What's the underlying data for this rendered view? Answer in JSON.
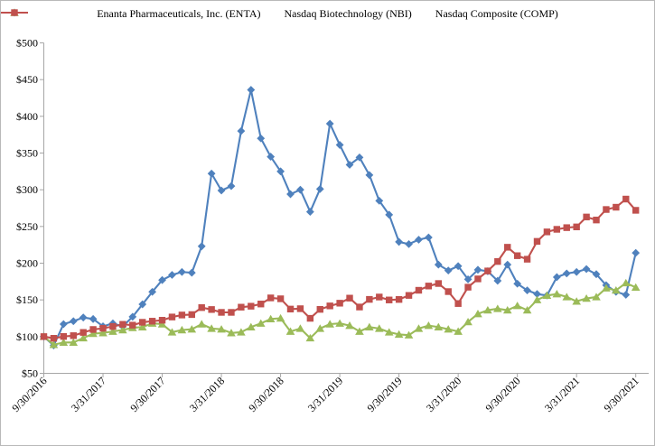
{
  "chart_data": {
    "type": "line",
    "title": "",
    "legend_position": "top",
    "grid": false,
    "y_axis": {
      "min": 50,
      "max": 500,
      "step": 50,
      "tick_labels": [
        "$50",
        "$100",
        "$150",
        "$200",
        "$250",
        "$300",
        "$350",
        "$400",
        "$450",
        "$500"
      ]
    },
    "x_axis": {
      "tick_every": 6,
      "tick_labels": [
        "9/30/2016",
        "3/31/2017",
        "9/30/2017",
        "3/31/2018",
        "9/30/2018",
        "3/31/2019",
        "9/30/2019",
        "3/31/2020",
        "9/30/2020",
        "3/31/2021",
        "9/30/2021"
      ]
    },
    "categories": [
      "9/30/2016",
      "10/31/2016",
      "11/30/2016",
      "12/31/2016",
      "1/31/2017",
      "2/28/2017",
      "3/31/2017",
      "4/30/2017",
      "5/31/2017",
      "6/30/2017",
      "7/31/2017",
      "8/31/2017",
      "9/30/2017",
      "10/31/2017",
      "11/30/2017",
      "12/31/2017",
      "1/31/2018",
      "2/28/2018",
      "3/31/2018",
      "4/30/2018",
      "5/31/2018",
      "6/30/2018",
      "7/31/2018",
      "8/31/2018",
      "9/30/2018",
      "10/31/2018",
      "11/30/2018",
      "12/31/2018",
      "1/31/2019",
      "2/28/2019",
      "3/31/2019",
      "4/30/2019",
      "5/31/2019",
      "6/30/2019",
      "7/31/2019",
      "8/31/2019",
      "9/30/2019",
      "10/31/2019",
      "11/30/2019",
      "12/31/2019",
      "1/31/2020",
      "2/28/2020",
      "3/31/2020",
      "4/30/2020",
      "5/31/2020",
      "6/30/2020",
      "7/31/2020",
      "8/31/2020",
      "9/30/2020",
      "10/31/2020",
      "11/30/2020",
      "12/31/2020",
      "1/31/2021",
      "2/28/2021",
      "3/31/2021",
      "4/30/2021",
      "5/31/2021",
      "6/30/2021",
      "7/31/2021",
      "8/31/2021",
      "9/30/2021"
    ],
    "series": [
      {
        "id": "enta",
        "name": "Enanta Pharmaceuticals, Inc. (ENTA)",
        "color": "#4F81BD",
        "marker": "diamond",
        "values": [
          100,
          88,
          117,
          121,
          126,
          124,
          114,
          118,
          114,
          127,
          144,
          161,
          177,
          184,
          188,
          187,
          223,
          322,
          299,
          305,
          380,
          436,
          370,
          345,
          325,
          294,
          300,
          270,
          301,
          390,
          361,
          334,
          344,
          320,
          285,
          266,
          229,
          226,
          232,
          235,
          198,
          190,
          196,
          178,
          191,
          189,
          176,
          198,
          172,
          163,
          158,
          156,
          181,
          186,
          188,
          192,
          185,
          170,
          161,
          157,
          214
        ]
      },
      {
        "id": "nbi",
        "name": "Nasdaq Biotechnology (NBI)",
        "color": "#9BBB59",
        "marker": "triangle",
        "values": [
          100,
          89,
          92,
          92,
          98,
          104,
          105,
          107,
          109,
          112,
          113,
          118,
          117,
          106,
          109,
          110,
          117,
          111,
          110,
          105,
          106,
          113,
          118,
          124,
          125,
          107,
          111,
          98,
          111,
          117,
          118,
          115,
          107,
          113,
          111,
          106,
          103,
          102,
          111,
          115,
          113,
          110,
          107,
          120,
          131,
          136,
          138,
          136,
          142,
          136,
          150,
          156,
          158,
          154,
          148,
          152,
          154,
          166,
          163,
          173,
          167
        ]
      },
      {
        "id": "comp",
        "name": "Nasdaq Composite (COMP)",
        "color": "#C0504D",
        "marker": "square",
        "values": [
          100,
          97.7,
          100.2,
          101.3,
          105.7,
          109.7,
          111.3,
          113.8,
          116.7,
          115.6,
          119.5,
          121.0,
          122.3,
          126.7,
          129.4,
          130.0,
          139.5,
          136.9,
          133.0,
          133.0,
          140.1,
          141.4,
          144.4,
          152.7,
          151.5,
          137.5,
          138.0,
          124.9,
          137.1,
          141.8,
          145.5,
          152.4,
          140.3,
          150.7,
          153.9,
          149.9,
          150.6,
          156.1,
          163.1,
          168.9,
          172.3,
          161.3,
          145.0,
          167.3,
          178.6,
          189.4,
          202.3,
          221.7,
          210.2,
          205.4,
          229.7,
          242.6,
          246.1,
          248.4,
          249.4,
          262.9,
          258.8,
          273.1,
          276.2,
          287.3,
          272.0
        ]
      }
    ],
    "axis_color": "#a6a6a6"
  }
}
